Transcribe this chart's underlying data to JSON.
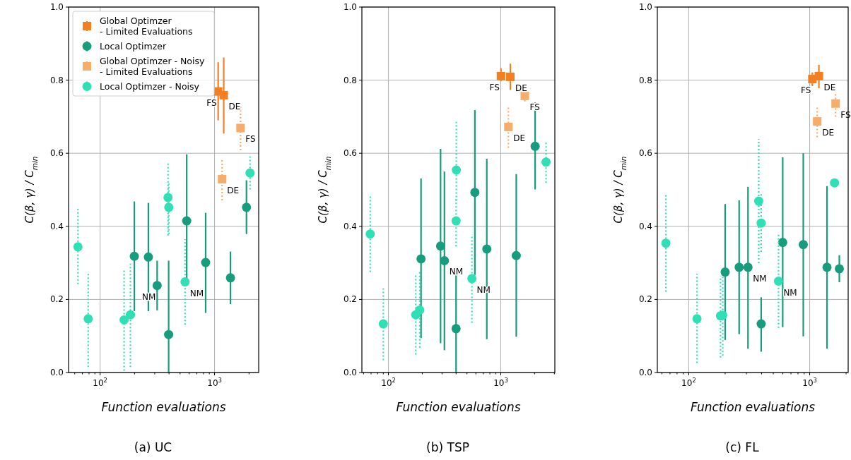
{
  "chart_data": [
    {
      "type": "scatter",
      "title": "(a) UC",
      "xlabel": "Function evaluations",
      "ylabel": "C(β, γ) / C$_{min}$",
      "log": "x",
      "grid": true,
      "legend": "top left",
      "xlim": [
        53,
        2430
      ],
      "ylim": [
        0,
        1
      ],
      "xticks": [
        {
          "value": 60,
          "label": null
        },
        {
          "value": 70,
          "label": null
        },
        {
          "value": 80,
          "label": null
        },
        {
          "value": 90,
          "label": null
        },
        {
          "value": 100,
          "label": "10$^{2}$"
        },
        {
          "value": 200,
          "label": null
        },
        {
          "value": 300,
          "label": null
        },
        {
          "value": 400,
          "label": null
        },
        {
          "value": 500,
          "label": null
        },
        {
          "value": 600,
          "label": null
        },
        {
          "value": 700,
          "label": null
        },
        {
          "value": 800,
          "label": null
        },
        {
          "value": 900,
          "label": null
        },
        {
          "value": 1000,
          "label": "10$^{3}$"
        },
        {
          "value": 2000,
          "label": null
        }
      ],
      "yticks": [
        {
          "value": 0,
          "label": "0.0"
        },
        {
          "value": 0.2,
          "label": "0.2"
        },
        {
          "value": 0.4,
          "label": "0.4"
        },
        {
          "value": 0.6,
          "label": "0.6"
        },
        {
          "value": 0.8,
          "label": "0.8"
        },
        {
          "value": 1,
          "label": "1.0"
        }
      ],
      "series": [
        {
          "name": "Global Optimzer\n- Limited Evaluations",
          "color": "#f28022",
          "marker": "square",
          "line_style": "solid",
          "x": [
            1075,
            1202
          ],
          "values": [
            0.769,
            0.759
          ],
          "errors": [
            [
              0.69,
              0.849
            ],
            [
              0.654,
              0.862
            ]
          ]
        },
        {
          "name": "Local Optimzer",
          "color": "#179c7d",
          "marker": "circle",
          "line_style": "solid",
          "x": [
            199,
            264,
            315,
            397,
            571,
            836,
            1377,
            1901
          ],
          "values": [
            0.318,
            0.316,
            0.238,
            0.104,
            0.415,
            0.301,
            0.259,
            0.452
          ],
          "errors": [
            [
              0.168,
              0.468
            ],
            [
              0.168,
              0.464
            ],
            [
              0.17,
              0.306
            ],
            [
              0,
              0.306
            ],
            [
              0.257,
              0.597
            ],
            [
              0.163,
              0.437
            ],
            [
              0.187,
              0.331
            ],
            [
              0.379,
              0.526
            ]
          ]
        },
        {
          "name": "Global Optimzer - Noisy\n- Limited Evaluations",
          "color": "#f6ad6a",
          "marker": "square",
          "line_style": "dotted",
          "x": [
            1687,
            1164
          ],
          "values": [
            0.669,
            0.529
          ],
          "errors": [
            [
              0.608,
              0.728
            ],
            [
              0.471,
              0.584
            ]
          ]
        },
        {
          "name": "Local Optimzer - Noisy",
          "color": "#2fe0b4",
          "marker": "circle",
          "line_style": "dotted",
          "x": [
            64,
            78.7,
            162,
            184,
            392,
            398,
            552,
            2042
          ],
          "values": [
            0.344,
            0.147,
            0.144,
            0.158,
            0.479,
            0.452,
            0.248,
            0.546
          ],
          "errors": [
            [
              0.242,
              0.448
            ],
            [
              0.015,
              0.273
            ],
            [
              0.005,
              0.283
            ],
            [
              0.015,
              0.298
            ],
            [
              0.375,
              0.577
            ],
            [
              0.379,
              0.517
            ],
            [
              0.131,
              0.365
            ],
            [
              0.501,
              0.591
            ]
          ]
        }
      ],
      "annotations": [
        {
          "text": "FS",
          "x": 1075,
          "y": 0.769
        },
        {
          "text": "DE",
          "x": 1202,
          "y": 0.759
        },
        {
          "text": "FS",
          "x": 1687,
          "y": 0.669
        },
        {
          "text": "DE",
          "x": 1164,
          "y": 0.529
        },
        {
          "text": "NM",
          "x": 315,
          "y": 0.238
        },
        {
          "text": "NM",
          "x": 552,
          "y": 0.248
        }
      ]
    },
    {
      "type": "scatter",
      "title": "(b) TSP",
      "xlabel": "Function evaluations",
      "ylabel": "C(β, γ) / C$_{min}$",
      "log": "x",
      "grid": true,
      "xlim": [
        58,
        3030
      ],
      "ylim": [
        0,
        1
      ],
      "xticks": [
        {
          "value": 60,
          "label": null
        },
        {
          "value": 70,
          "label": null
        },
        {
          "value": 80,
          "label": null
        },
        {
          "value": 90,
          "label": null
        },
        {
          "value": 100,
          "label": "10$^{2}$"
        },
        {
          "value": 200,
          "label": null
        },
        {
          "value": 300,
          "label": null
        },
        {
          "value": 400,
          "label": null
        },
        {
          "value": 500,
          "label": null
        },
        {
          "value": 600,
          "label": null
        },
        {
          "value": 700,
          "label": null
        },
        {
          "value": 800,
          "label": null
        },
        {
          "value": 900,
          "label": null
        },
        {
          "value": 1000,
          "label": "10$^{3}$"
        },
        {
          "value": 2000,
          "label": null
        },
        {
          "value": 3000,
          "label": null
        }
      ],
      "yticks": [
        {
          "value": 0,
          "label": "0.0"
        },
        {
          "value": 0.2,
          "label": "0.2"
        },
        {
          "value": 0.4,
          "label": "0.4"
        },
        {
          "value": 0.6,
          "label": "0.6"
        },
        {
          "value": 0.8,
          "label": "0.8"
        },
        {
          "value": 1,
          "label": "1.0"
        }
      ],
      "series": [
        {
          "color": "#f28022",
          "marker": "square",
          "line_style": "solid",
          "x": [
            1004,
            1217
          ],
          "values": [
            0.811,
            0.809
          ],
          "errors": [
            [
              0.797,
              0.833
            ],
            [
              0.773,
              0.845
            ]
          ]
        },
        {
          "color": "#179c7d",
          "marker": "circle",
          "line_style": "solid",
          "x": [
            195,
            291,
            315,
            400,
            588,
            751,
            1374,
            2023
          ],
          "values": [
            0.311,
            0.346,
            0.306,
            0.12,
            0.493,
            0.338,
            0.32,
            0.619
          ],
          "errors": [
            [
              0.094,
              0.531
            ],
            [
              0.08,
              0.612
            ],
            [
              0.061,
              0.55
            ],
            [
              0,
              0.278
            ],
            [
              0.267,
              0.718
            ],
            [
              0.091,
              0.585
            ],
            [
              0.098,
              0.543
            ],
            [
              0.501,
              0.739
            ]
          ]
        },
        {
          "color": "#f6ad6a",
          "marker": "square",
          "line_style": "dotted",
          "x": [
            1637,
            1169
          ],
          "values": [
            0.757,
            0.672
          ],
          "errors": [
            [
              0.742,
              0.773
            ],
            [
              0.615,
              0.728
            ]
          ]
        },
        {
          "color": "#2fe0b4",
          "marker": "circle",
          "line_style": "dotted",
          "x": [
            68.8,
            90,
            175,
            190,
            402,
            400,
            553,
            2529
          ],
          "values": [
            0.379,
            0.133,
            0.158,
            0.171,
            0.554,
            0.415,
            0.257,
            0.576
          ],
          "errors": [
            [
              0.275,
              0.485
            ],
            [
              0.034,
              0.23
            ],
            [
              0.049,
              0.267
            ],
            [
              0.068,
              0.275
            ],
            [
              0.47,
              0.686
            ],
            [
              0.345,
              0.48
            ],
            [
              0.136,
              0.378
            ],
            [
              0.519,
              0.632
            ]
          ]
        }
      ],
      "annotations": [
        {
          "text": "FS",
          "x": 1004,
          "y": 0.811
        },
        {
          "text": "DE",
          "x": 1217,
          "y": 0.809
        },
        {
          "text": "FS",
          "x": 1637,
          "y": 0.757
        },
        {
          "text": "DE",
          "x": 1169,
          "y": 0.672
        },
        {
          "text": "NM",
          "x": 315,
          "y": 0.306
        },
        {
          "text": "NM",
          "x": 553,
          "y": 0.257
        }
      ]
    },
    {
      "type": "scatter",
      "title": "(c) FL",
      "xlabel": "Function evaluations",
      "ylabel": "C(β, γ) / C$_{min}$",
      "log": "x",
      "grid": true,
      "xlim": [
        55,
        2080
      ],
      "ylim": [
        0,
        1
      ],
      "xticks": [
        {
          "value": 60,
          "label": null
        },
        {
          "value": 70,
          "label": null
        },
        {
          "value": 80,
          "label": null
        },
        {
          "value": 90,
          "label": null
        },
        {
          "value": 100,
          "label": "10$^{2}$"
        },
        {
          "value": 200,
          "label": null
        },
        {
          "value": 300,
          "label": null
        },
        {
          "value": 400,
          "label": null
        },
        {
          "value": 500,
          "label": null
        },
        {
          "value": 600,
          "label": null
        },
        {
          "value": 700,
          "label": null
        },
        {
          "value": 800,
          "label": null
        },
        {
          "value": 900,
          "label": null
        },
        {
          "value": 1000,
          "label": "10$^{3}$"
        },
        {
          "value": 2000,
          "label": null
        }
      ],
      "yticks": [
        {
          "value": 0,
          "label": "0.0"
        },
        {
          "value": 0.2,
          "label": "0.2"
        },
        {
          "value": 0.4,
          "label": "0.4"
        },
        {
          "value": 0.6,
          "label": "0.6"
        },
        {
          "value": 0.8,
          "label": "0.8"
        },
        {
          "value": 1,
          "label": "1.0"
        }
      ],
      "series": [
        {
          "color": "#f28022",
          "marker": "square",
          "line_style": "solid",
          "x": [
            1052,
            1191
          ],
          "values": [
            0.803,
            0.811
          ],
          "errors": [
            [
              0.784,
              0.821
            ],
            [
              0.778,
              0.842
            ]
          ]
        },
        {
          "color": "#179c7d",
          "marker": "circle",
          "line_style": "solid",
          "x": [
            200,
            261,
            309,
            397,
            598,
            885,
            1390,
            1758
          ],
          "values": [
            0.275,
            0.288,
            0.288,
            0.133,
            0.356,
            0.35,
            0.288,
            0.284
          ],
          "errors": [
            [
              0.089,
              0.461
            ],
            [
              0.105,
              0.471
            ],
            [
              0.065,
              0.508
            ],
            [
              0.057,
              0.206
            ],
            [
              0.124,
              0.589
            ],
            [
              0.099,
              0.6
            ],
            [
              0.065,
              0.51
            ],
            [
              0.247,
              0.321
            ]
          ]
        },
        {
          "color": "#f6ad6a",
          "marker": "square",
          "line_style": "dotted",
          "x": [
            1637,
            1153
          ],
          "values": [
            0.736,
            0.687
          ],
          "errors": [
            [
              0.7,
              0.768
            ],
            [
              0.644,
              0.725
            ]
          ]
        },
        {
          "color": "#2fe0b4",
          "marker": "circle",
          "line_style": "dotted",
          "x": [
            64.7,
            117,
            183,
            191,
            379,
            397,
            552,
            1604
          ],
          "values": [
            0.354,
            0.147,
            0.155,
            0.157,
            0.469,
            0.409,
            0.25,
            0.519
          ],
          "errors": [
            [
              0.221,
              0.488
            ],
            [
              0.026,
              0.27
            ],
            [
              0.041,
              0.264
            ],
            [
              0.046,
              0.264
            ],
            [
              0.299,
              0.639
            ],
            [
              0.33,
              0.488
            ],
            [
              0.122,
              0.378
            ],
            [
              0.508,
              0.529
            ]
          ]
        }
      ],
      "annotations": [
        {
          "text": "FS",
          "x": 1052,
          "y": 0.803
        },
        {
          "text": "DE",
          "x": 1191,
          "y": 0.811
        },
        {
          "text": "FS",
          "x": 1637,
          "y": 0.736
        },
        {
          "text": "DE",
          "x": 1153,
          "y": 0.687
        },
        {
          "text": "NM",
          "x": 309,
          "y": 0.288
        },
        {
          "text": "NM",
          "x": 552,
          "y": 0.25
        }
      ]
    }
  ]
}
